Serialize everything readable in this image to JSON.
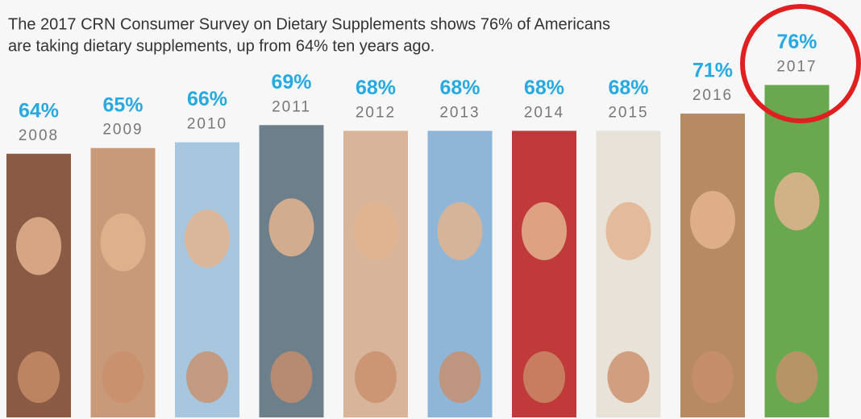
{
  "chart_data": {
    "type": "bar",
    "title": [
      "The 2017 CRN Consumer Survey on Dietary Supplements shows 76% of Americans",
      "are taking dietary supplements, up from 64% ten years ago."
    ],
    "categories": [
      "2008",
      "2009",
      "2010",
      "2011",
      "2012",
      "2013",
      "2014",
      "2015",
      "2016",
      "2017"
    ],
    "values": [
      64,
      65,
      66,
      69,
      68,
      68,
      68,
      68,
      71,
      76
    ],
    "value_labels": [
      "64%",
      "65%",
      "66%",
      "69%",
      "68%",
      "68%",
      "68%",
      "68%",
      "71%",
      "76%"
    ],
    "colors": [
      "#8a5a44",
      "#c99a7a",
      "#a8c7de",
      "#6e7f8c",
      "#d8b49a",
      "#8fb6d6",
      "#c0393b",
      "#e8e2d8",
      "#b88a62",
      "#6aa84f"
    ],
    "ylim": [
      18,
      80
    ]
  }
}
